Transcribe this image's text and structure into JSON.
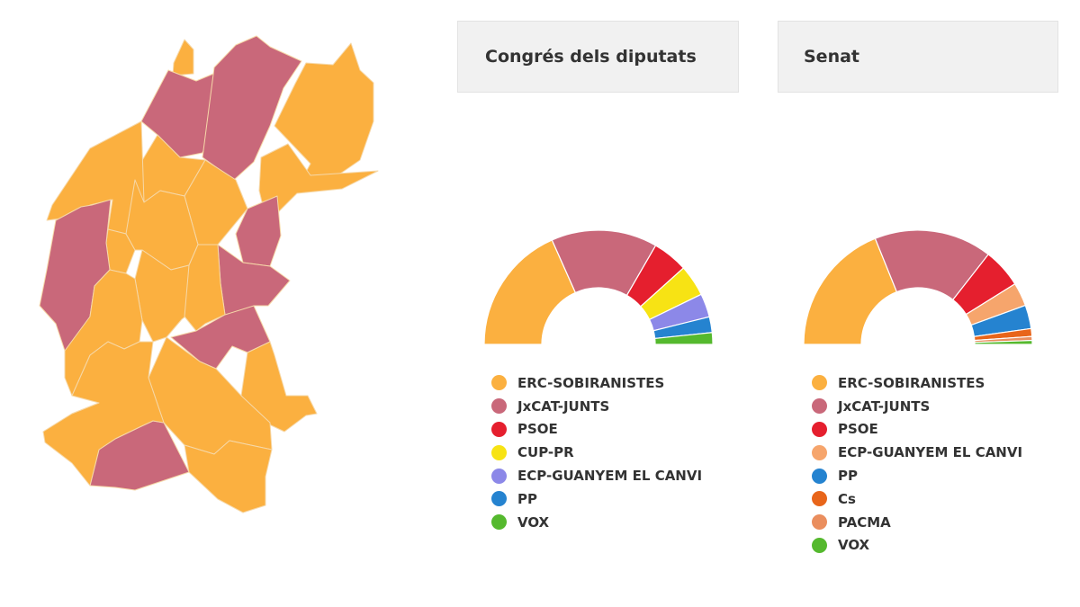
{
  "colors": {
    "erc": "#fbb040",
    "junts": "#c9687a",
    "psoe": "#e51f2e",
    "cup": "#f7e314",
    "ecp_congres": "#8c88e8",
    "ecp_senat": "#f6a56c",
    "pp": "#2583d0",
    "cs": "#e8651a",
    "pacma": "#ea8e5e",
    "vox": "#55b92e",
    "map_border": "#f6d8a8"
  },
  "chart_data": [
    {
      "type": "pie",
      "variant": "semi-donut",
      "title": "Congrés dels diputats",
      "categories": [
        "ERC-SOBIRANISTES",
        "JxCAT-JUNTS",
        "PSOE",
        "CUP-PR",
        "ECP-GUANYEM EL CANVI",
        "PP",
        "VOX"
      ],
      "values": [
        33,
        27,
        9,
        8,
        6,
        4,
        3
      ],
      "legend": "bottom"
    },
    {
      "type": "pie",
      "variant": "semi-donut",
      "title": "Senat",
      "categories": [
        "ERC-SOBIRANISTES",
        "JxCAT-JUNTS",
        "PSOE",
        "ECP-GUANYEM EL CANVI",
        "PP",
        "Cs",
        "PACMA",
        "VOX"
      ],
      "values": [
        34,
        30,
        10,
        6,
        6,
        2,
        1,
        1
      ],
      "legend": "bottom"
    }
  ],
  "map": {
    "regions": [
      {
        "party": "erc"
      },
      {
        "party": "junts"
      },
      {
        "party": "junts"
      },
      {
        "party": "erc"
      },
      {
        "party": "erc"
      },
      {
        "party": "erc"
      },
      {
        "party": "erc"
      },
      {
        "party": "junts"
      },
      {
        "party": "erc"
      },
      {
        "party": "erc"
      },
      {
        "party": "erc"
      },
      {
        "party": "junts"
      },
      {
        "party": "junts"
      },
      {
        "party": "erc"
      },
      {
        "party": "erc"
      },
      {
        "party": "junts"
      },
      {
        "party": "erc"
      },
      {
        "party": "erc"
      },
      {
        "party": "erc"
      },
      {
        "party": "junts"
      },
      {
        "party": "junts"
      },
      {
        "party": "erc"
      },
      {
        "party": "erc"
      }
    ]
  }
}
